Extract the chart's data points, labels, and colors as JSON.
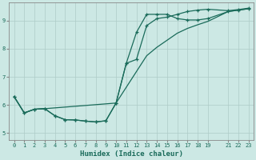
{
  "title": "",
  "xlabel": "Humidex (Indice chaleur)",
  "bg_color": "#cce8e4",
  "line_color": "#1a6b5a",
  "grid_color": "#aeccc8",
  "xlim": [
    -0.5,
    23.5
  ],
  "ylim": [
    4.75,
    9.65
  ],
  "xticks": [
    0,
    1,
    2,
    3,
    4,
    5,
    6,
    7,
    8,
    9,
    10,
    11,
    12,
    13,
    14,
    15,
    16,
    17,
    18,
    19,
    21,
    22,
    23
  ],
  "yticks": [
    5,
    6,
    7,
    8,
    9
  ],
  "line1_x": [
    0,
    1,
    2,
    3,
    4,
    5,
    6,
    7,
    8,
    9,
    10,
    11,
    12,
    13,
    14,
    15,
    16,
    17,
    18,
    19,
    21,
    22,
    23
  ],
  "line1_y": [
    6.3,
    5.72,
    5.85,
    5.87,
    5.62,
    5.48,
    5.47,
    5.43,
    5.4,
    5.44,
    6.07,
    7.48,
    8.58,
    9.22,
    9.22,
    9.22,
    9.07,
    9.02,
    9.02,
    9.07,
    9.32,
    9.37,
    9.42
  ],
  "line2_x": [
    0,
    1,
    2,
    3,
    4,
    5,
    6,
    7,
    8,
    9,
    10,
    11,
    12,
    13,
    14,
    15,
    16,
    17,
    18,
    19,
    21,
    22,
    23
  ],
  "line2_y": [
    6.3,
    5.72,
    5.85,
    5.87,
    5.62,
    5.48,
    5.47,
    5.43,
    5.4,
    5.44,
    6.07,
    7.48,
    7.62,
    8.82,
    9.07,
    9.12,
    9.22,
    9.32,
    9.37,
    9.4,
    9.35,
    9.39,
    9.44
  ],
  "line3_x": [
    0,
    1,
    2,
    3,
    10,
    13,
    14,
    16,
    17,
    18,
    19,
    21,
    22,
    23
  ],
  "line3_y": [
    6.3,
    5.72,
    5.85,
    5.87,
    6.07,
    7.75,
    8.05,
    8.55,
    8.72,
    8.85,
    8.97,
    9.32,
    9.37,
    9.42
  ]
}
